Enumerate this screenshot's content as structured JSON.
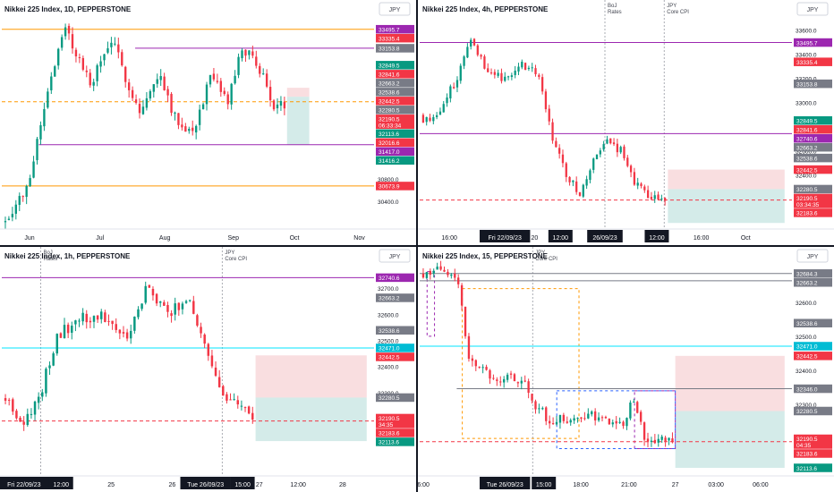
{
  "colors": {
    "up": "#089981",
    "down": "#f23645",
    "orange_line": "#ff9800",
    "purple_line": "#9c27b0",
    "cyan_line": "#00e5ff",
    "gray_line": "#787b86",
    "risk_zone": "#f7d3d6",
    "reward_zone": "#cfe9e7",
    "divider": "#131722"
  },
  "chart_data": [
    {
      "id": "p1",
      "type": "candlestick",
      "title": "Nikkei 225 Index, 1D, PEPPERSTONE",
      "currency": "JPY",
      "ylim": [
        29900,
        33700
      ],
      "y_ticks": [
        "30400.0",
        "30800.0"
      ],
      "x_ticks": [
        {
          "label": "Jun",
          "t": 0.075
        },
        {
          "label": "Jul",
          "t": 0.265
        },
        {
          "label": "Aug",
          "t": 0.44
        },
        {
          "label": "Sep",
          "t": 0.625
        },
        {
          "label": "Oct",
          "t": 0.79
        },
        {
          "label": "Nov",
          "t": 0.965
        }
      ],
      "n_bars": 80,
      "ohlc": {
        "start": 30000,
        "knots": [
          [
            0,
            30100
          ],
          [
            6,
            30600
          ],
          [
            13,
            32700
          ],
          [
            17,
            33500
          ],
          [
            24,
            32500
          ],
          [
            30,
            33300
          ],
          [
            38,
            32000
          ],
          [
            44,
            32700
          ],
          [
            48,
            31900
          ],
          [
            53,
            31650
          ],
          [
            58,
            32600
          ],
          [
            63,
            32200
          ],
          [
            67,
            33150
          ],
          [
            72,
            32800
          ],
          [
            76,
            32100
          ]
        ],
        "noise": 220,
        "seed": 7
      },
      "levels": [
        {
          "value": 33495.7,
          "color": "orange",
          "from": 0.0
        },
        {
          "value": 33153.8,
          "color": "purple",
          "from": 0.36
        },
        {
          "value": 31417.0,
          "color": "purple",
          "from": 0.1
        },
        {
          "value": 30673.9,
          "color": "orange",
          "from": 0.0
        },
        {
          "value": 32190.5,
          "color": "orange",
          "from": 0.0,
          "dashed": true
        }
      ],
      "zones": [
        {
          "kind": "risk",
          "from": 0.77,
          "to": 0.83,
          "y1": 32442.5,
          "y2": 32280.5
        },
        {
          "kind": "reward",
          "from": 0.77,
          "to": 0.83,
          "y1": 32280.5,
          "y2": 31417.0
        }
      ],
      "vlines": [],
      "labels": [
        {
          "text": "33495.7",
          "value": 33495.7,
          "color": "purple"
        },
        {
          "text": "33335.4",
          "value": 33335.4,
          "color": "red"
        },
        {
          "text": "33153.8",
          "value": 33153.8,
          "color": "gray"
        },
        {
          "text": "32849.5",
          "value": 32849.5,
          "color": "green"
        },
        {
          "text": "32841.6",
          "value": 32841.6,
          "color": "red"
        },
        {
          "text": "32663.2",
          "value": 32663.2,
          "color": "gray"
        },
        {
          "text": "32538.6",
          "value": 32538.6,
          "color": "gray"
        },
        {
          "text": "32442.5",
          "value": 32442.5,
          "color": "red"
        },
        {
          "text": "32280.5",
          "value": 32280.5,
          "color": "gray"
        },
        {
          "text": "32190.5",
          "value": 32190.5,
          "color": "red",
          "sub": "06:33:34"
        },
        {
          "text": "32113.6",
          "value": 32113.6,
          "color": "green"
        },
        {
          "text": "32016.6",
          "value": 32016.6,
          "color": "red"
        },
        {
          "text": "31417.0",
          "value": 31417.0,
          "color": "purple"
        },
        {
          "text": "31416.2",
          "value": 31416.2,
          "color": "green"
        },
        {
          "text": "30673.9",
          "value": 30673.9,
          "color": "orange"
        }
      ],
      "cursor_labels": []
    },
    {
      "id": "p2",
      "type": "candlestick",
      "title": "Nikkei 225 Index, 4h, PEPPERSTONE",
      "currency": "JPY",
      "ylim": [
        31950,
        33700
      ],
      "y_ticks": [
        "33600.0",
        "33400.0",
        "33200.0",
        "33000.0",
        "32600.0",
        "32400.0"
      ],
      "x_ticks": [
        {
          "label": "16:00",
          "t": 0.08
        },
        {
          "label": "18",
          "t": 0.195
        },
        {
          "label": "20",
          "t": 0.31
        },
        {
          "label": "16:00",
          "t": 0.76
        },
        {
          "label": "Oct",
          "t": 0.88
        }
      ],
      "n_bars": 72,
      "ohlc": {
        "start": 32900,
        "knots": [
          [
            0,
            32850
          ],
          [
            4,
            32900
          ],
          [
            10,
            33200
          ],
          [
            14,
            33550
          ],
          [
            18,
            33300
          ],
          [
            24,
            33180
          ],
          [
            29,
            33320
          ],
          [
            34,
            33220
          ],
          [
            38,
            32700
          ],
          [
            42,
            32400
          ],
          [
            46,
            32250
          ],
          [
            50,
            32500
          ],
          [
            54,
            32680
          ],
          [
            58,
            32600
          ],
          [
            62,
            32350
          ],
          [
            66,
            32200
          ]
        ],
        "noise": 70,
        "seed": 11
      },
      "levels": [
        {
          "value": 33495.7,
          "color": "purple",
          "from": 0.0
        },
        {
          "value": 32740.6,
          "color": "purple",
          "from": 0.0
        },
        {
          "value": 32190.5,
          "color": "red",
          "from": 0.0,
          "dashed": true
        }
      ],
      "zones": [
        {
          "kind": "risk",
          "from": 0.67,
          "to": 0.985,
          "y1": 32442.5,
          "y2": 32280.5
        },
        {
          "kind": "reward",
          "from": 0.67,
          "to": 0.985,
          "y1": 32280.5,
          "y2": 32000.0
        }
      ],
      "vlines": [
        {
          "t": 0.5,
          "label": [
            "BoJ",
            "Rates"
          ]
        },
        {
          "t": 0.66,
          "label": [
            "JPY",
            "Core CPI"
          ]
        }
      ],
      "labels": [
        {
          "text": "33495.7",
          "value": 33495.7,
          "color": "purple"
        },
        {
          "text": "33335.4",
          "value": 33335.4,
          "color": "red"
        },
        {
          "text": "33153.8",
          "value": 33153.8,
          "color": "gray"
        },
        {
          "text": "32849.5",
          "value": 32849.5,
          "color": "green"
        },
        {
          "text": "32841.6",
          "value": 32841.6,
          "color": "red"
        },
        {
          "text": "32740.6",
          "value": 32740.6,
          "color": "purple"
        },
        {
          "text": "32663.2",
          "value": 32663.2,
          "color": "gray"
        },
        {
          "text": "32538.6",
          "value": 32538.6,
          "color": "gray"
        },
        {
          "text": "32442.5",
          "value": 32442.5,
          "color": "red"
        },
        {
          "text": "32280.5",
          "value": 32280.5,
          "color": "gray"
        },
        {
          "text": "32190.5",
          "value": 32190.5,
          "color": "red",
          "sub": "03:34:35"
        },
        {
          "text": "32183.6",
          "value": 32183.6,
          "color": "red"
        }
      ],
      "cursor_labels": [
        {
          "text": "Fri 22/09/23",
          "t": 0.23
        },
        {
          "text": "12:00",
          "t": 0.38
        },
        {
          "text": "26/09/23",
          "t": 0.5
        },
        {
          "text": "12:00",
          "t": 0.64
        }
      ]
    },
    {
      "id": "p3",
      "type": "candlestick",
      "title": "Nikkei 225 Index, 1h, PEPPERSTONE",
      "currency": "JPY",
      "ylim": [
        31980,
        32790
      ],
      "y_ticks": [
        "32700.0",
        "32600.0",
        "32500.0",
        "32400.0",
        "32300.0"
      ],
      "x_ticks": [
        {
          "label": "25",
          "t": 0.295
        },
        {
          "label": "26",
          "t": 0.46
        },
        {
          "label": "27",
          "t": 0.695
        },
        {
          "label": "12:00",
          "t": 0.8
        },
        {
          "label": "28",
          "t": 0.92
        }
      ],
      "n_bars": 68,
      "ohlc": {
        "start": 32280,
        "knots": [
          [
            0,
            32280
          ],
          [
            5,
            32180
          ],
          [
            10,
            32320
          ],
          [
            14,
            32520
          ],
          [
            20,
            32580
          ],
          [
            26,
            32600
          ],
          [
            33,
            32500
          ],
          [
            38,
            32700
          ],
          [
            44,
            32600
          ],
          [
            50,
            32660
          ],
          [
            55,
            32450
          ],
          [
            60,
            32250
          ],
          [
            64,
            32260
          ],
          [
            67,
            32180
          ]
        ],
        "noise": 45,
        "seed": 23
      },
      "levels": [
        {
          "value": 32740.6,
          "color": "purple",
          "from": 0.0
        },
        {
          "value": 32471.0,
          "color": "cyan",
          "from": 0.0
        },
        {
          "value": 32190.5,
          "color": "red",
          "from": 0.0,
          "dashed": true
        }
      ],
      "zones": [
        {
          "kind": "risk",
          "from": 0.685,
          "to": 0.985,
          "y1": 32442.5,
          "y2": 32280.5
        },
        {
          "kind": "reward",
          "from": 0.685,
          "to": 0.985,
          "y1": 32280.5,
          "y2": 32113.6
        }
      ],
      "vlines": [
        {
          "t": 0.105,
          "label": [
            "BoJ",
            "Rates"
          ]
        },
        {
          "t": 0.595,
          "label": [
            "JPY",
            "Core CPI"
          ]
        }
      ],
      "labels": [
        {
          "text": "32740.6",
          "value": 32740.6,
          "color": "purple"
        },
        {
          "text": "32663.2",
          "value": 32663.2,
          "color": "gray"
        },
        {
          "text": "32538.6",
          "value": 32538.6,
          "color": "gray"
        },
        {
          "text": "32471.0",
          "value": 32471.0,
          "color": "cyan"
        },
        {
          "text": "32442.5",
          "value": 32442.5,
          "color": "red"
        },
        {
          "text": "32280.5",
          "value": 32280.5,
          "color": "gray"
        },
        {
          "text": "32190.5",
          "value": 32190.5,
          "color": "red",
          "sub": "34:35"
        },
        {
          "text": "32183.6",
          "value": 32183.6,
          "color": "red"
        },
        {
          "text": "32113.6",
          "value": 32113.6,
          "color": "green"
        }
      ],
      "cursor_labels": [
        {
          "text": "Fri 22/09/23",
          "t": 0.06
        },
        {
          "text": "12:00",
          "t": 0.16
        },
        {
          "text": "Tue 26/09/23",
          "t": 0.55
        },
        {
          "text": "15:00",
          "t": 0.65
        }
      ]
    },
    {
      "id": "p4",
      "type": "candlestick",
      "title": "Nikkei 225 Index, 15, PEPPERSTONE",
      "currency": "JPY",
      "ylim": [
        32090,
        32710
      ],
      "y_ticks": [
        "32600.0",
        "32500.0",
        "32400.0",
        "32300.0",
        "32200.0"
      ],
      "x_ticks": [
        {
          "label": "6:00",
          "t": 0.01
        },
        {
          "label": "12:00",
          "t": 0.19
        },
        {
          "label": "18:00",
          "t": 0.435
        },
        {
          "label": "21:00",
          "t": 0.565
        },
        {
          "label": "27",
          "t": 0.69
        },
        {
          "label": "03:00",
          "t": 0.8
        },
        {
          "label": "06:00",
          "t": 0.92
        }
      ],
      "n_bars": 72,
      "ohlc": {
        "start": 32680,
        "knots": [
          [
            0,
            32680
          ],
          [
            4,
            32690
          ],
          [
            10,
            32660
          ],
          [
            13,
            32420
          ],
          [
            16,
            32400
          ],
          [
            22,
            32380
          ],
          [
            28,
            32370
          ],
          [
            32,
            32300
          ],
          [
            36,
            32250
          ],
          [
            42,
            32260
          ],
          [
            48,
            32270
          ],
          [
            53,
            32250
          ],
          [
            57,
            32240
          ],
          [
            60,
            32320
          ],
          [
            63,
            32200
          ]
        ],
        "noise": 30,
        "seed": 41
      },
      "levels": [
        {
          "value": 32684.3,
          "color": "gray",
          "from": 0.0
        },
        {
          "value": 32663.2,
          "color": "gray",
          "from": 0.0
        },
        {
          "value": 32471.0,
          "color": "cyan",
          "from": 0.0
        },
        {
          "value": 32346.0,
          "color": "gray",
          "from": 0.1
        },
        {
          "value": 32190.5,
          "color": "red",
          "from": 0.0,
          "dashed": true
        }
      ],
      "zones": [
        {
          "kind": "risk",
          "from": 0.69,
          "to": 0.985,
          "y1": 32442.5,
          "y2": 32280.5
        },
        {
          "kind": "reward",
          "from": 0.69,
          "to": 0.985,
          "y1": 32280.5,
          "y2": 32113.6
        }
      ],
      "boxes": [
        {
          "from": 0.115,
          "to": 0.43,
          "y1": 32640,
          "y2": 32200,
          "color": "orange"
        },
        {
          "from": 0.37,
          "to": 0.69,
          "y1": 32340,
          "y2": 32170,
          "color": "blue"
        },
        {
          "from": 0.58,
          "to": 0.69,
          "y1": 32340,
          "y2": 32170,
          "color": "purple"
        },
        {
          "from": 0.02,
          "to": 0.04,
          "y1": 32690,
          "y2": 32500,
          "color": "purple"
        }
      ],
      "vlines": [
        {
          "t": 0.305,
          "label": [
            "JPY",
            "Core CPI"
          ]
        }
      ],
      "labels": [
        {
          "text": "32684.3",
          "value": 32684.3,
          "color": "gray"
        },
        {
          "text": "32663.2",
          "value": 32663.2,
          "color": "gray"
        },
        {
          "text": "32538.6",
          "value": 32538.6,
          "color": "gray"
        },
        {
          "text": "32471.0",
          "value": 32471.0,
          "color": "cyan"
        },
        {
          "text": "32442.5",
          "value": 32442.5,
          "color": "red"
        },
        {
          "text": "32346.0",
          "value": 32346.0,
          "color": "gray"
        },
        {
          "text": "32280.5",
          "value": 32280.5,
          "color": "gray"
        },
        {
          "text": "32190.5",
          "value": 32190.5,
          "color": "red",
          "sub": "04:35"
        },
        {
          "text": "32183.6",
          "value": 32183.6,
          "color": "red"
        },
        {
          "text": "32113.6",
          "value": 32113.6,
          "color": "green"
        }
      ],
      "cursor_labels": [
        {
          "text": "Tue 26/09/23",
          "t": 0.23
        },
        {
          "text": "15:00",
          "t": 0.335
        }
      ]
    }
  ]
}
